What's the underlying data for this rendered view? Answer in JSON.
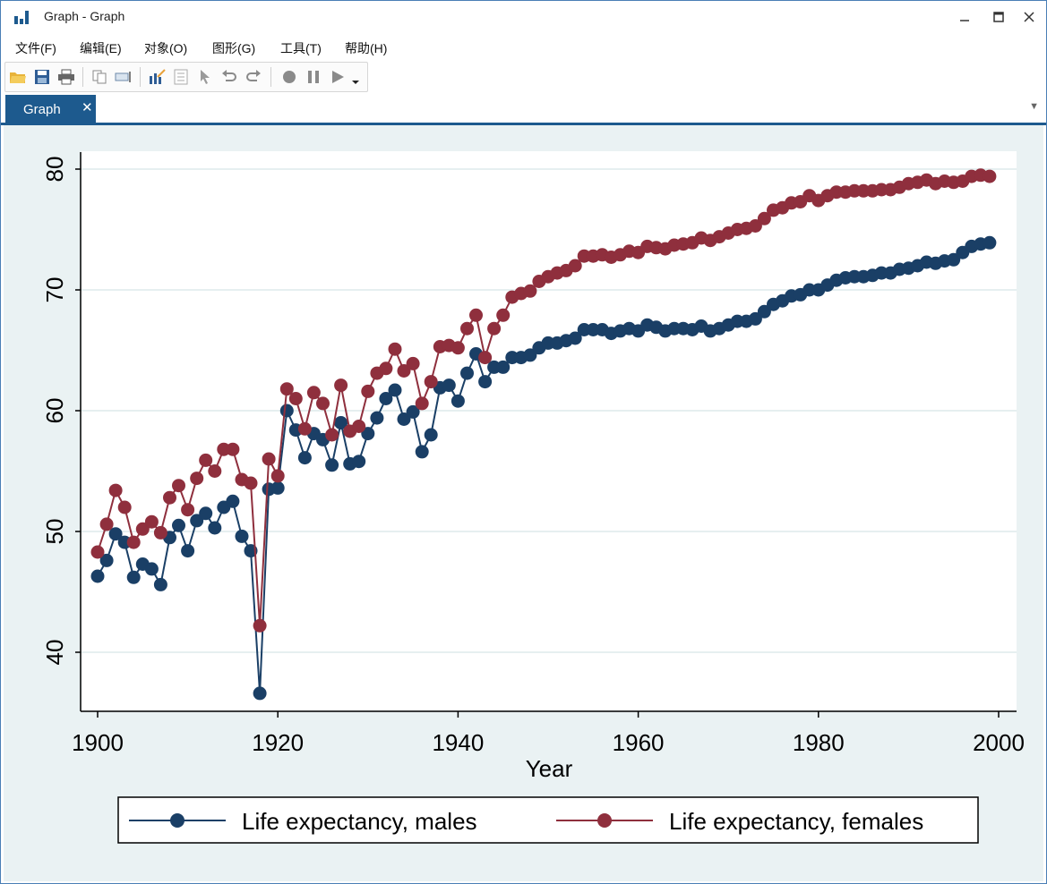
{
  "window": {
    "title": "Graph - Graph"
  },
  "menu": [
    {
      "label": "文件(F)"
    },
    {
      "label": "编辑(E)"
    },
    {
      "label": "对象(O)"
    },
    {
      "label": "图形(G)"
    },
    {
      "label": "工具(T)"
    },
    {
      "label": "帮助(H)"
    }
  ],
  "tabs": [
    {
      "label": "Graph"
    }
  ],
  "colors": {
    "males": "#1a3f66",
    "females": "#8f2f3d",
    "accent": "#1d5a8e"
  },
  "chart_data": {
    "type": "line",
    "xlabel": "Year",
    "ylabel": "",
    "title": "",
    "xlim": [
      1900,
      2000
    ],
    "ylim": [
      35,
      81
    ],
    "xticks": [
      1900,
      1920,
      1940,
      1960,
      1980,
      2000
    ],
    "yticks": [
      40,
      50,
      60,
      70,
      80
    ],
    "grid": "horizontal",
    "legend_position": "bottom",
    "x": [
      1900,
      1901,
      1902,
      1903,
      1904,
      1905,
      1906,
      1907,
      1908,
      1909,
      1910,
      1911,
      1912,
      1913,
      1914,
      1915,
      1916,
      1917,
      1918,
      1919,
      1920,
      1921,
      1922,
      1923,
      1924,
      1925,
      1926,
      1927,
      1928,
      1929,
      1930,
      1931,
      1932,
      1933,
      1934,
      1935,
      1936,
      1937,
      1938,
      1939,
      1940,
      1941,
      1942,
      1943,
      1944,
      1945,
      1946,
      1947,
      1948,
      1949,
      1950,
      1951,
      1952,
      1953,
      1954,
      1955,
      1956,
      1957,
      1958,
      1959,
      1960,
      1961,
      1962,
      1963,
      1964,
      1965,
      1966,
      1967,
      1968,
      1969,
      1970,
      1971,
      1972,
      1973,
      1974,
      1975,
      1976,
      1977,
      1978,
      1979,
      1980,
      1981,
      1982,
      1983,
      1984,
      1985,
      1986,
      1987,
      1988,
      1989,
      1990,
      1991,
      1992,
      1993,
      1994,
      1995,
      1996,
      1997,
      1998,
      1999
    ],
    "series": [
      {
        "name": "Life expectancy, males",
        "values": [
          46.3,
          47.6,
          49.8,
          49.1,
          46.2,
          47.3,
          46.9,
          45.6,
          49.5,
          50.5,
          48.4,
          50.9,
          51.5,
          50.3,
          52.0,
          52.5,
          49.6,
          48.4,
          36.6,
          53.5,
          53.6,
          60.0,
          58.4,
          56.1,
          58.1,
          57.6,
          55.5,
          59.0,
          55.6,
          55.8,
          58.1,
          59.4,
          61.0,
          61.7,
          59.3,
          59.9,
          56.6,
          58.0,
          61.9,
          62.1,
          60.8,
          63.1,
          64.7,
          62.4,
          63.6,
          63.6,
          64.4,
          64.4,
          64.6,
          65.2,
          65.6,
          65.6,
          65.8,
          66.0,
          66.7,
          66.7,
          66.7,
          66.4,
          66.6,
          66.8,
          66.6,
          67.1,
          66.9,
          66.6,
          66.8,
          66.8,
          66.7,
          67.0,
          66.6,
          66.8,
          67.1,
          67.4,
          67.4,
          67.6,
          68.2,
          68.8,
          69.1,
          69.5,
          69.6,
          70.0,
          70.0,
          70.4,
          70.8,
          71.0,
          71.1,
          71.1,
          71.2,
          71.4,
          71.4,
          71.7,
          71.8,
          72.0,
          72.3,
          72.2,
          72.4,
          72.5,
          73.1,
          73.6,
          73.8,
          73.9
        ]
      },
      {
        "name": "Life expectancy, females",
        "values": [
          48.3,
          50.6,
          53.4,
          52.0,
          49.1,
          50.2,
          50.8,
          49.9,
          52.8,
          53.8,
          51.8,
          54.4,
          55.9,
          55.0,
          56.8,
          56.8,
          54.3,
          54.0,
          42.2,
          56.0,
          54.6,
          61.8,
          61.0,
          58.5,
          61.5,
          60.6,
          58.0,
          62.1,
          58.3,
          58.7,
          61.6,
          63.1,
          63.5,
          65.1,
          63.3,
          63.9,
          60.6,
          62.4,
          65.3,
          65.4,
          65.2,
          66.8,
          67.9,
          64.4,
          66.8,
          67.9,
          69.4,
          69.7,
          69.9,
          70.7,
          71.1,
          71.4,
          71.6,
          72.0,
          72.8,
          72.8,
          72.9,
          72.7,
          72.9,
          73.2,
          73.1,
          73.6,
          73.5,
          73.4,
          73.7,
          73.8,
          73.9,
          74.3,
          74.1,
          74.4,
          74.7,
          75.0,
          75.1,
          75.3,
          75.9,
          76.6,
          76.8,
          77.2,
          77.3,
          77.8,
          77.4,
          77.8,
          78.1,
          78.1,
          78.2,
          78.2,
          78.2,
          78.3,
          78.3,
          78.5,
          78.8,
          78.9,
          79.1,
          78.8,
          79.0,
          78.9,
          79.0,
          79.4,
          79.5,
          79.4
        ]
      }
    ]
  }
}
